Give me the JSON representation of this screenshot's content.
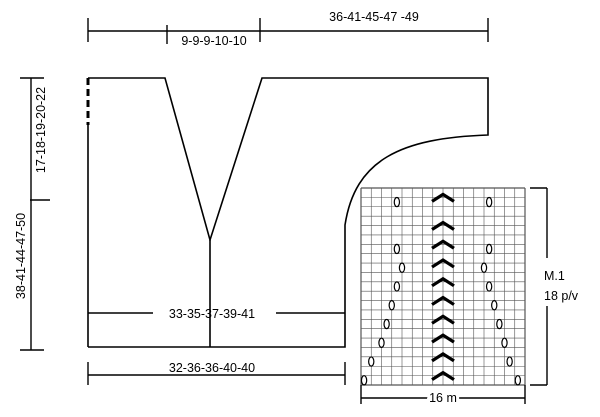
{
  "labels": {
    "top_right_width": "36-41-45-47 -49",
    "neck_width": "9-9-9-10-10",
    "total_height": "38-41-44-47-50",
    "armhole_height": "17-18-19-20-22",
    "middle_width": "33-35-37-39-41",
    "bottom_width": "32-36-36-40-40",
    "chart_name": "M.1",
    "chart_rows": "18 p/v",
    "chart_stitches": "16 m"
  },
  "colors": {
    "line": "#000000",
    "grid": "#555555",
    "background": "#ffffff"
  }
}
